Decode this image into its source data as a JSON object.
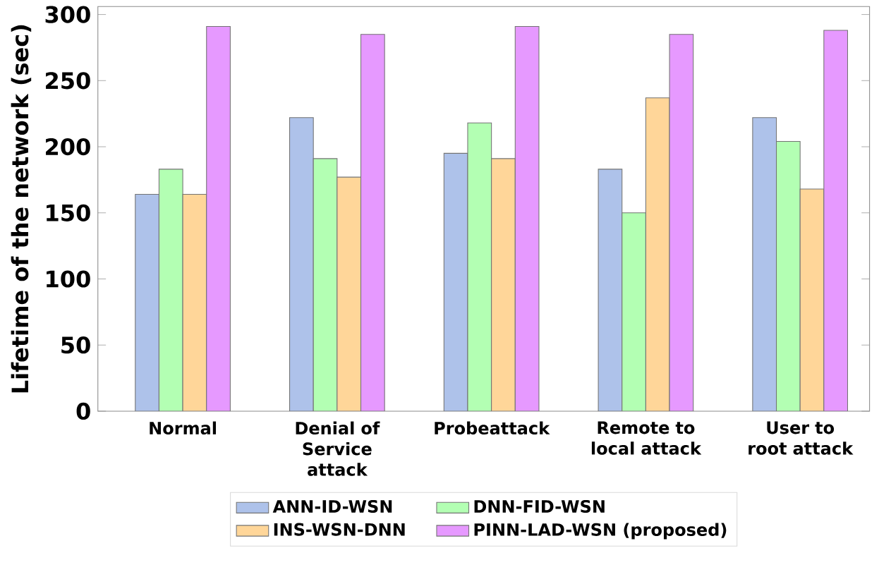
{
  "chart_data": {
    "type": "bar",
    "ylabel": "Lifetime of the network (sec)",
    "categories": [
      "Normal",
      "Denial of Service attack",
      "Probeattack",
      "Remote to local attack",
      "User to root attack"
    ],
    "series": [
      {
        "name": "ANN-ID-WSN",
        "color": "#aec2ea",
        "values": [
          164,
          222,
          195,
          183,
          222
        ]
      },
      {
        "name": "DNN-FID-WSN",
        "color": "#b3ffb3",
        "values": [
          183,
          191,
          218,
          150,
          204
        ]
      },
      {
        "name": "INS-WSN-DNN",
        "color": "#ffd699",
        "values": [
          164,
          177,
          191,
          237,
          168
        ]
      },
      {
        "name": "PINN-LAD-WSN  (proposed)",
        "color": "#e699ff",
        "values": [
          291,
          285,
          291,
          285,
          288
        ]
      }
    ],
    "ylim": [
      0,
      306
    ],
    "yticks": [
      0,
      50,
      100,
      150,
      200,
      250,
      300
    ],
    "legend": "bottom",
    "grid": false
  }
}
